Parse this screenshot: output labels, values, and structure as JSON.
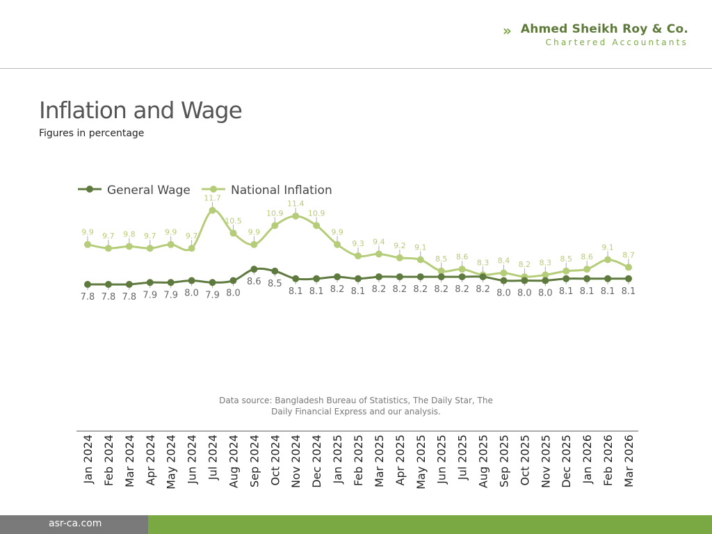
{
  "header": {
    "company": "Ahmed Sheikh Roy & Co.",
    "tagline": "Chartered Accountants",
    "logo_icon": "double-chevron-icon"
  },
  "title": "Inflation and Wage",
  "subtitle": "Figures in percentage",
  "source": "Data source: Bangladesh Bureau of Statistics, The Daily Star, The Daily Financial Express and our analysis.",
  "footer": {
    "website": "asr-ca.com"
  },
  "colors": {
    "wage": "#5f7a3e",
    "inflation": "#b5cc78",
    "footer_green": "#7aa843",
    "footer_gray": "#7a7a7a"
  },
  "chart_data": {
    "type": "line",
    "legend_position": "top-left",
    "grid": false,
    "categories": [
      "Jan 2024",
      "Feb 2024",
      "Mar 2024",
      "Apr 2024",
      "May 2024",
      "Jun 2024",
      "Jul 2024",
      "Aug 2024",
      "Sep 2024",
      "Oct 2024",
      "Nov 2024",
      "Dec 2024",
      "Jan 2025",
      "Feb 2025",
      "Mar 2025",
      "Apr 2025",
      "May 2025",
      "Jun 2025",
      "Jul 2025",
      "Aug 2025",
      "Sep 2025",
      "Oct 2025",
      "Nov 2025",
      "Dec 2025",
      "Jan 2026",
      "Feb 2026",
      "Mar 2026"
    ],
    "series": [
      {
        "name": "General Wage",
        "values": [
          7.8,
          7.8,
          7.8,
          7.9,
          7.9,
          8.0,
          7.9,
          8.0,
          8.6,
          8.5,
          8.1,
          8.1,
          8.2,
          8.1,
          8.2,
          8.2,
          8.2,
          8.2,
          8.2,
          8.2,
          8.0,
          8.0,
          8.0,
          8.1,
          8.1,
          8.1,
          8.1
        ]
      },
      {
        "name": "National Inflation",
        "values": [
          9.9,
          9.7,
          9.8,
          9.7,
          9.9,
          9.7,
          11.7,
          10.5,
          9.9,
          10.9,
          11.4,
          10.9,
          9.9,
          9.3,
          9.4,
          9.2,
          9.1,
          8.5,
          8.6,
          8.3,
          8.4,
          8.2,
          8.3,
          8.5,
          8.6,
          9.1,
          8.7
        ]
      }
    ]
  }
}
